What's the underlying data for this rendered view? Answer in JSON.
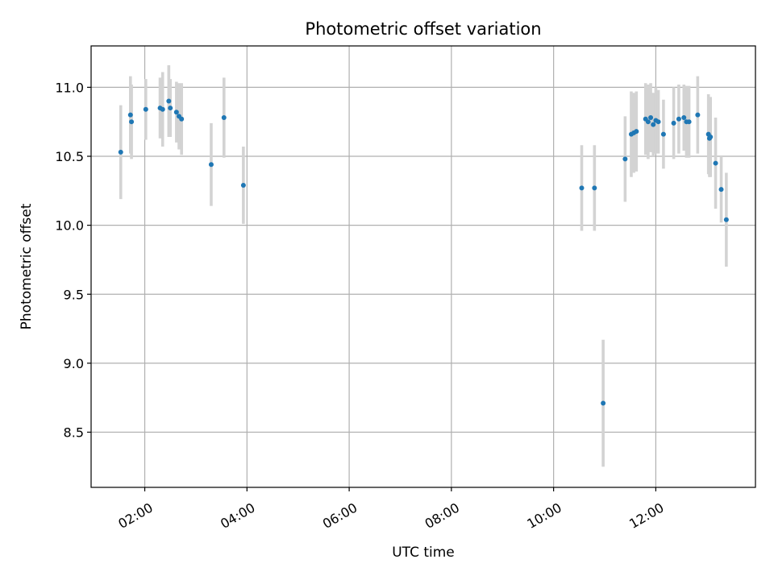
{
  "chart_data": {
    "type": "scatter",
    "title": "Photometric offset variation",
    "xlabel": "UTC time",
    "ylabel": "Photometric offset",
    "x_unit": "hours UTC",
    "xlim": [
      0.95,
      13.95
    ],
    "ylim": [
      8.1,
      11.3
    ],
    "grid": true,
    "x_ticks": [
      {
        "value": 2,
        "label": "02:00"
      },
      {
        "value": 4,
        "label": "04:00"
      },
      {
        "value": 6,
        "label": "06:00"
      },
      {
        "value": 8,
        "label": "08:00"
      },
      {
        "value": 10,
        "label": "10:00"
      },
      {
        "value": 12,
        "label": "12:00"
      }
    ],
    "y_ticks": [
      {
        "value": 8.5,
        "label": "8.5"
      },
      {
        "value": 9.0,
        "label": "9.0"
      },
      {
        "value": 9.5,
        "label": "9.5"
      },
      {
        "value": 10.0,
        "label": "10.0"
      },
      {
        "value": 10.5,
        "label": "10.5"
      },
      {
        "value": 11.0,
        "label": "11.0"
      }
    ],
    "colors": {
      "points": "#1f77b4",
      "errorbars": "#d3d3d3",
      "grid": "#b0b0b0"
    },
    "series": [
      {
        "points": [
          {
            "x": 1.53,
            "y": 10.53,
            "err": 0.34
          },
          {
            "x": 1.72,
            "y": 10.8,
            "err": 0.28
          },
          {
            "x": 1.74,
            "y": 10.75,
            "err": 0.27
          },
          {
            "x": 2.02,
            "y": 10.84,
            "err": 0.22
          },
          {
            "x": 2.3,
            "y": 10.85,
            "err": 0.22
          },
          {
            "x": 2.35,
            "y": 10.84,
            "err": 0.27
          },
          {
            "x": 2.47,
            "y": 10.9,
            "err": 0.26
          },
          {
            "x": 2.5,
            "y": 10.85,
            "err": 0.21
          },
          {
            "x": 2.62,
            "y": 10.82,
            "err": 0.22
          },
          {
            "x": 2.67,
            "y": 10.79,
            "err": 0.24
          },
          {
            "x": 2.72,
            "y": 10.77,
            "err": 0.26
          },
          {
            "x": 3.3,
            "y": 10.44,
            "err": 0.3
          },
          {
            "x": 3.55,
            "y": 10.78,
            "err": 0.29
          },
          {
            "x": 3.93,
            "y": 10.29,
            "err": 0.28
          },
          {
            "x": 10.55,
            "y": 10.27,
            "err": 0.31
          },
          {
            "x": 10.8,
            "y": 10.27,
            "err": 0.31
          },
          {
            "x": 10.97,
            "y": 8.71,
            "err": 0.46
          },
          {
            "x": 11.4,
            "y": 10.48,
            "err": 0.31
          },
          {
            "x": 11.52,
            "y": 10.66,
            "err": 0.31
          },
          {
            "x": 11.57,
            "y": 10.67,
            "err": 0.29
          },
          {
            "x": 11.62,
            "y": 10.68,
            "err": 0.29
          },
          {
            "x": 11.8,
            "y": 10.77,
            "err": 0.26
          },
          {
            "x": 11.85,
            "y": 10.75,
            "err": 0.27
          },
          {
            "x": 11.9,
            "y": 10.78,
            "err": 0.25
          },
          {
            "x": 11.95,
            "y": 10.73,
            "err": 0.23
          },
          {
            "x": 12.0,
            "y": 10.76,
            "err": 0.24
          },
          {
            "x": 12.05,
            "y": 10.75,
            "err": 0.23
          },
          {
            "x": 12.15,
            "y": 10.66,
            "err": 0.25
          },
          {
            "x": 12.35,
            "y": 10.74,
            "err": 0.26
          },
          {
            "x": 12.45,
            "y": 10.77,
            "err": 0.25
          },
          {
            "x": 12.55,
            "y": 10.78,
            "err": 0.24
          },
          {
            "x": 12.6,
            "y": 10.75,
            "err": 0.26
          },
          {
            "x": 12.65,
            "y": 10.75,
            "err": 0.26
          },
          {
            "x": 12.82,
            "y": 10.8,
            "err": 0.28
          },
          {
            "x": 13.03,
            "y": 10.66,
            "err": 0.29
          },
          {
            "x": 13.05,
            "y": 10.63,
            "err": 0.28
          },
          {
            "x": 13.07,
            "y": 10.64,
            "err": 0.29
          },
          {
            "x": 13.17,
            "y": 10.45,
            "err": 0.33
          },
          {
            "x": 13.28,
            "y": 10.26,
            "err": 0.24
          },
          {
            "x": 13.38,
            "y": 10.04,
            "err": 0.34
          }
        ]
      }
    ]
  }
}
